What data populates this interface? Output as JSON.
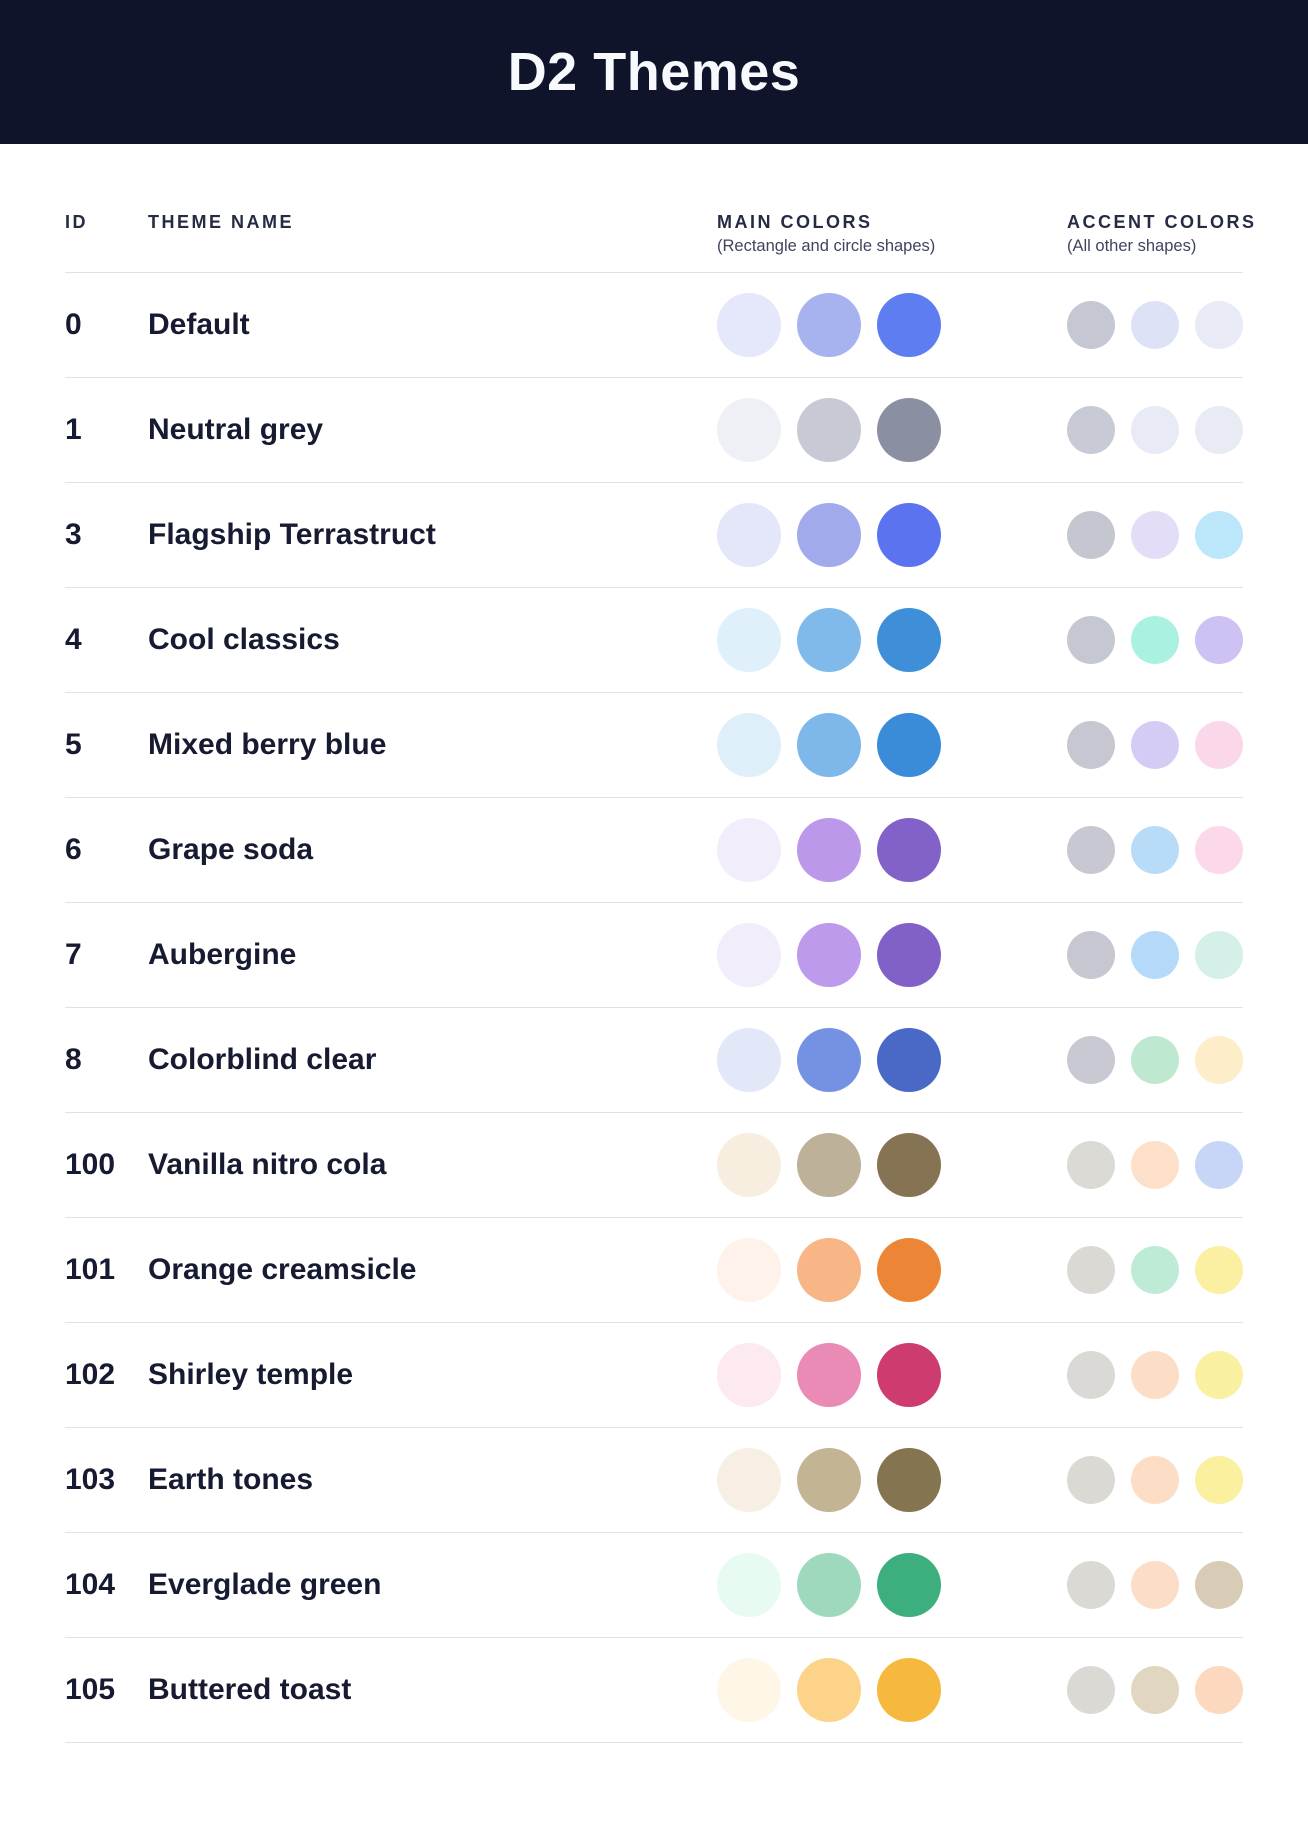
{
  "header": {
    "title": "D2 Themes"
  },
  "colors": {
    "banner_bg": "#10142A",
    "banner_text": "#F8F9FD",
    "column_label_text": "#252B42",
    "row_text": "#171B31",
    "divider": "#DEE1EB"
  },
  "table": {
    "columns": {
      "id_label": "ID",
      "name_label": "THEME NAME",
      "main_label": "MAIN COLORS",
      "main_sublabel": "(Rectangle and circle shapes)",
      "accent_label": "ACCENT COLORS",
      "accent_sublabel": "(All other shapes)"
    },
    "rows": [
      {
        "id": "0",
        "name": "Default",
        "main": [
          "#E5E7FB",
          "#A6B3EE",
          "#5E7DF1"
        ],
        "accent": [
          "#C5C8D3",
          "#DEE2F6",
          "#E8EBF6"
        ]
      },
      {
        "id": "1",
        "name": "Neutral grey",
        "main": [
          "#EEF0F5",
          "#C7CAD4",
          "#8A8FA1"
        ],
        "accent": [
          "#C8CBD5",
          "#E8EAF5",
          "#E9EBF4"
        ]
      },
      {
        "id": "3",
        "name": "Flagship Terrastruct",
        "main": [
          "#E4E6FA",
          "#A1AAEB",
          "#5B73EF"
        ],
        "accent": [
          "#C5C7D0",
          "#E3DDF7",
          "#BCE6FA"
        ]
      },
      {
        "id": "4",
        "name": "Cool classics",
        "main": [
          "#E0F0FB",
          "#80BAEA",
          "#3E8FD8"
        ],
        "accent": [
          "#C6C8D1",
          "#AAF1E1",
          "#CEC1F4"
        ]
      },
      {
        "id": "5",
        "name": "Mixed berry blue",
        "main": [
          "#DFEFFA",
          "#7EB8EA",
          "#3A8CD8"
        ],
        "accent": [
          "#C6C7D1",
          "#D5CCF5",
          "#FBD8E9"
        ]
      },
      {
        "id": "6",
        "name": "Grape soda",
        "main": [
          "#F2EDFA",
          "#BC98EB",
          "#8261C8"
        ],
        "accent": [
          "#C7C8D1",
          "#B8DCF8",
          "#FBD9EA"
        ]
      },
      {
        "id": "7",
        "name": "Aubergine",
        "main": [
          "#F1EDFA",
          "#BD9AEB",
          "#8160C8"
        ],
        "accent": [
          "#C6C7D0",
          "#B5D9F9",
          "#D4F0E8"
        ]
      },
      {
        "id": "8",
        "name": "Colorblind clear",
        "main": [
          "#E3E8F8",
          "#7491E3",
          "#4A69C6"
        ],
        "accent": [
          "#C8C9D2",
          "#BEE8D0",
          "#FDEDC9"
        ]
      },
      {
        "id": "100",
        "name": "Vanilla nitro cola",
        "main": [
          "#F8EEE0",
          "#BDB19A",
          "#857354"
        ],
        "accent": [
          "#DCDAD5",
          "#FDE0C9",
          "#C7D5F7"
        ]
      },
      {
        "id": "101",
        "name": "Orange creamsicle",
        "main": [
          "#FEF2EA",
          "#F8B586",
          "#ED8536"
        ],
        "accent": [
          "#DBD9D4",
          "#BEEBD6",
          "#FBF0A2"
        ]
      },
      {
        "id": "102",
        "name": "Shirley temple",
        "main": [
          "#FCEAF0",
          "#E98BB4",
          "#CD3B70"
        ],
        "accent": [
          "#DBD9D5",
          "#FCDEC6",
          "#FAF0A2"
        ]
      },
      {
        "id": "103",
        "name": "Earth tones",
        "main": [
          "#F7EFE3",
          "#C3B493",
          "#857450"
        ],
        "accent": [
          "#DBD9D4",
          "#FCDEC7",
          "#FBF0A0"
        ]
      },
      {
        "id": "104",
        "name": "Everglade green",
        "main": [
          "#E8FBF3",
          "#9ED9BE",
          "#3DAF7F"
        ],
        "accent": [
          "#DBD9D4",
          "#FCDEC8",
          "#D8CCB6"
        ]
      },
      {
        "id": "105",
        "name": "Buttered toast",
        "main": [
          "#FEF7E8",
          "#FCD388",
          "#F6B93E"
        ],
        "accent": [
          "#DBD9D4",
          "#E1D6C0",
          "#FCD9BE"
        ]
      }
    ]
  }
}
